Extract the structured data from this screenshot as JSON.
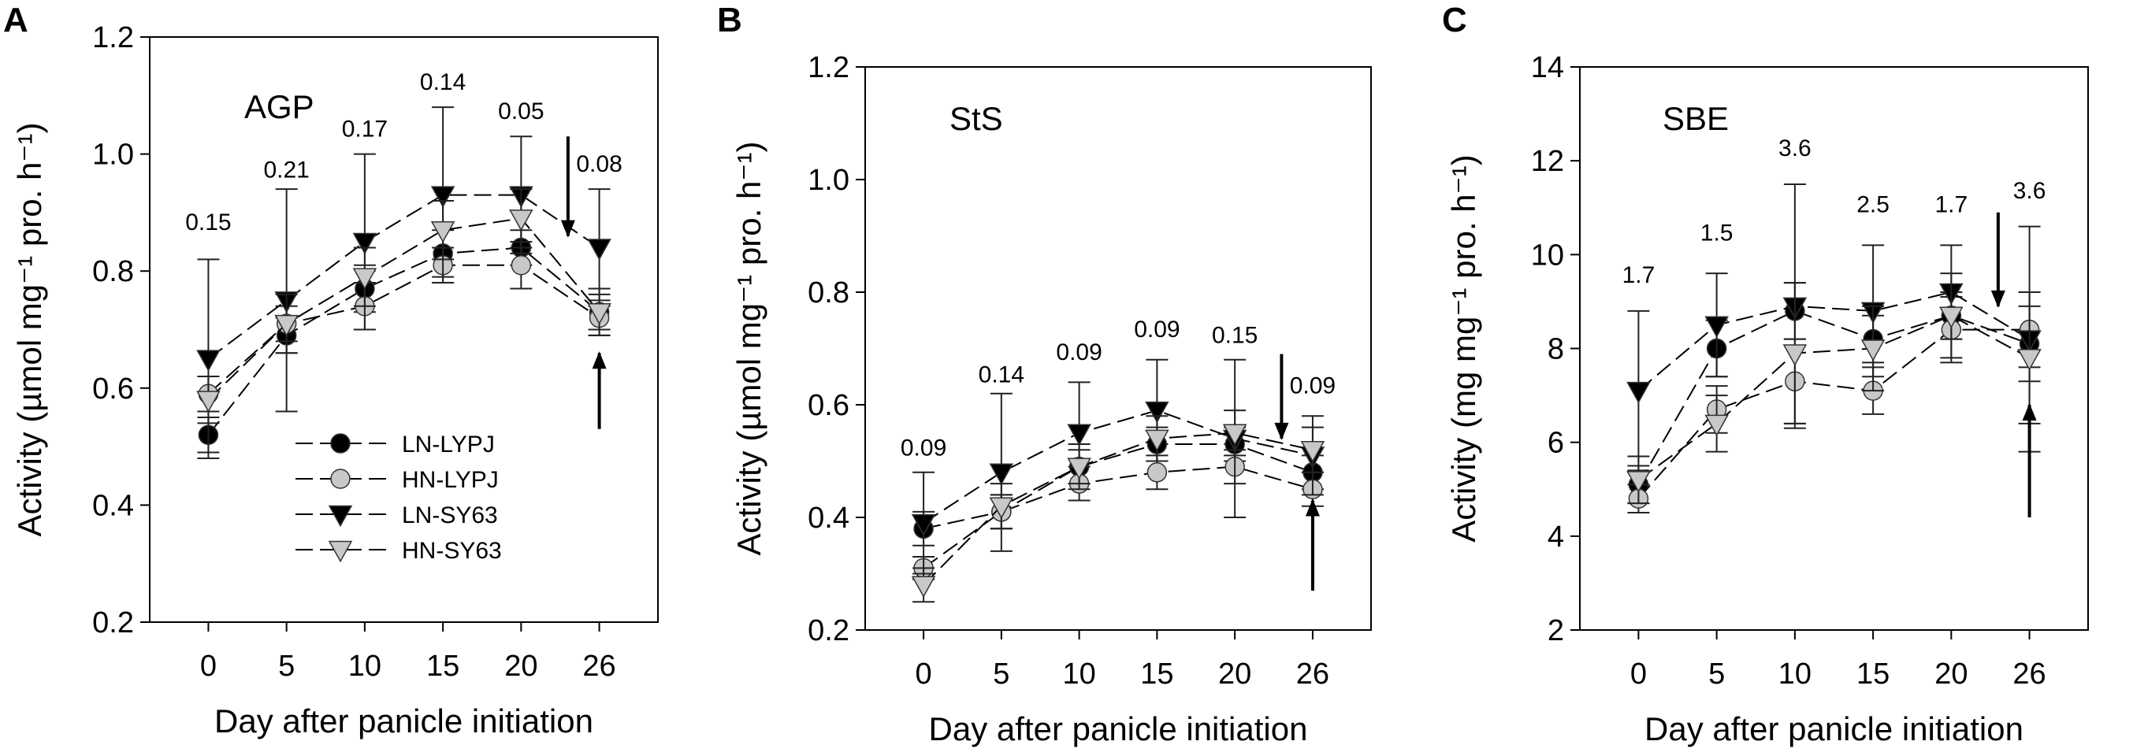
{
  "panels": [
    {
      "letter": "A"
    },
    {
      "letter": "B"
    },
    {
      "letter": "C"
    }
  ],
  "legend": [
    {
      "label": "LN-LYPJ",
      "marker": "circle",
      "fill": "#000000"
    },
    {
      "label": "HN-LYPJ",
      "marker": "circle",
      "fill": "#c8c8c8"
    },
    {
      "label": "LN-SY63",
      "marker": "triangle-down",
      "fill": "#000000"
    },
    {
      "label": "HN-SY63",
      "marker": "triangle-down",
      "fill": "#c8c8c8"
    }
  ],
  "colors": {
    "black": "#000000",
    "gray": "#c8c8c8",
    "axis": "#000000"
  },
  "chart_data": [
    {
      "type": "line",
      "panel": "A",
      "enzyme": "AGP",
      "categories": [
        "0",
        "5",
        "10",
        "15",
        "20",
        "26"
      ],
      "xlabel": "Day after panicle initiation",
      "ylabel": "Activity (µmol mg⁻¹ pro. h⁻¹)",
      "ylim": [
        0.2,
        1.2
      ],
      "yticks": [
        "0.2",
        "0.4",
        "0.6",
        "0.8",
        "1.0",
        "1.2"
      ],
      "annotations": [
        "0.15",
        "0.21",
        "0.17",
        "0.14",
        "0.05",
        "0.08"
      ],
      "annotation_values": [
        0.87,
        0.96,
        1.03,
        1.11,
        1.06,
        0.97
      ],
      "arrows": {
        "down": {
          "category_index": 4.6,
          "from": 1.03,
          "to": 0.86
        },
        "up": {
          "category_index": 5,
          "from": 0.53,
          "to": 0.66
        }
      },
      "series": [
        {
          "name": "LN-LYPJ",
          "values": [
            0.52,
            0.69,
            0.77,
            0.83,
            0.84,
            0.73
          ],
          "errors": [
            0.03,
            0.03,
            0.04,
            0.04,
            0.03,
            0.03
          ]
        },
        {
          "name": "HN-LYPJ",
          "values": [
            0.59,
            0.71,
            0.74,
            0.81,
            0.81,
            0.72
          ],
          "errors": [
            0.03,
            0.03,
            0.04,
            0.03,
            0.04,
            0.03
          ]
        },
        {
          "name": "LN-SY63",
          "values": [
            0.65,
            0.75,
            0.85,
            0.93,
            0.93,
            0.84
          ],
          "errors": [
            0.17,
            0.19,
            0.15,
            0.15,
            0.1,
            0.1
          ]
        },
        {
          "name": "HN-SY63",
          "values": [
            0.58,
            0.71,
            0.79,
            0.87,
            0.89,
            0.73
          ],
          "errors": [
            0.04,
            0.05,
            0.05,
            0.05,
            0.05,
            0.04
          ]
        }
      ]
    },
    {
      "type": "line",
      "panel": "B",
      "enzyme": "StS",
      "categories": [
        "0",
        "5",
        "10",
        "15",
        "20",
        "26"
      ],
      "xlabel": "Day after panicle initiation",
      "ylabel": "Activity (µmol mg⁻¹ pro. h⁻¹)",
      "ylim": [
        0.2,
        1.2
      ],
      "yticks": [
        "0.2",
        "0.4",
        "0.6",
        "0.8",
        "1.0",
        "1.2"
      ],
      "annotations": [
        "0.09",
        "0.14",
        "0.09",
        "0.09",
        "0.15",
        "0.09"
      ],
      "annotation_values": [
        0.51,
        0.64,
        0.68,
        0.72,
        0.71,
        0.62
      ],
      "arrows": {
        "down": {
          "category_index": 4.6,
          "from": 0.69,
          "to": 0.54
        },
        "up": {
          "category_index": 5,
          "from": 0.27,
          "to": 0.43
        }
      },
      "series": [
        {
          "name": "LN-LYPJ",
          "values": [
            0.38,
            0.41,
            0.49,
            0.53,
            0.53,
            0.48
          ],
          "errors": [
            0.03,
            0.03,
            0.03,
            0.03,
            0.03,
            0.03
          ]
        },
        {
          "name": "HN-LYPJ",
          "values": [
            0.31,
            0.41,
            0.46,
            0.48,
            0.49,
            0.45
          ],
          "errors": [
            0.02,
            0.03,
            0.03,
            0.03,
            0.03,
            0.03
          ]
        },
        {
          "name": "LN-SY63",
          "values": [
            0.39,
            0.48,
            0.55,
            0.59,
            0.54,
            0.51
          ],
          "errors": [
            0.09,
            0.14,
            0.09,
            0.09,
            0.14,
            0.07
          ]
        },
        {
          "name": "HN-SY63",
          "values": [
            0.28,
            0.42,
            0.49,
            0.54,
            0.55,
            0.52
          ],
          "errors": [
            0.03,
            0.04,
            0.04,
            0.04,
            0.04,
            0.04
          ]
        }
      ]
    },
    {
      "type": "line",
      "panel": "C",
      "enzyme": "SBE",
      "categories": [
        "0",
        "5",
        "10",
        "15",
        "20",
        "26"
      ],
      "xlabel": "Day after panicle initiation",
      "ylabel": "Activity (mg mg⁻¹ pro. h⁻¹)",
      "ylim": [
        2,
        14
      ],
      "yticks": [
        "2",
        "4",
        "6",
        "8",
        "10",
        "12",
        "14"
      ],
      "annotations": [
        "1.7",
        "1.5",
        "3.6",
        "2.5",
        "1.7",
        "3.6"
      ],
      "annotation_values": [
        9.4,
        10.3,
        12.1,
        10.9,
        10.9,
        11.2
      ],
      "arrows": {
        "down": {
          "category_index": 4.6,
          "from": 10.9,
          "to": 8.9
        },
        "up": {
          "category_index": 5,
          "from": 4.4,
          "to": 6.8
        }
      },
      "series": [
        {
          "name": "LN-LYPJ",
          "values": [
            5.1,
            8.0,
            8.8,
            8.2,
            8.7,
            8.1
          ],
          "errors": [
            0.4,
            0.6,
            0.6,
            0.5,
            0.5,
            0.8
          ]
        },
        {
          "name": "HN-LYPJ",
          "values": [
            4.8,
            6.7,
            7.3,
            7.1,
            8.4,
            8.4
          ],
          "errors": [
            0.3,
            0.5,
            0.9,
            0.5,
            0.7,
            0.8
          ]
        },
        {
          "name": "LN-SY63",
          "values": [
            7.1,
            8.5,
            8.9,
            8.8,
            9.2,
            8.2
          ],
          "errors": [
            1.7,
            1.1,
            2.6,
            1.4,
            1.0,
            2.4
          ]
        },
        {
          "name": "HN-SY63",
          "values": [
            5.2,
            6.4,
            7.9,
            8.0,
            8.7,
            7.8
          ],
          "errors": [
            0.5,
            0.6,
            1.5,
            0.9,
            0.9,
            1.4
          ]
        }
      ]
    }
  ]
}
